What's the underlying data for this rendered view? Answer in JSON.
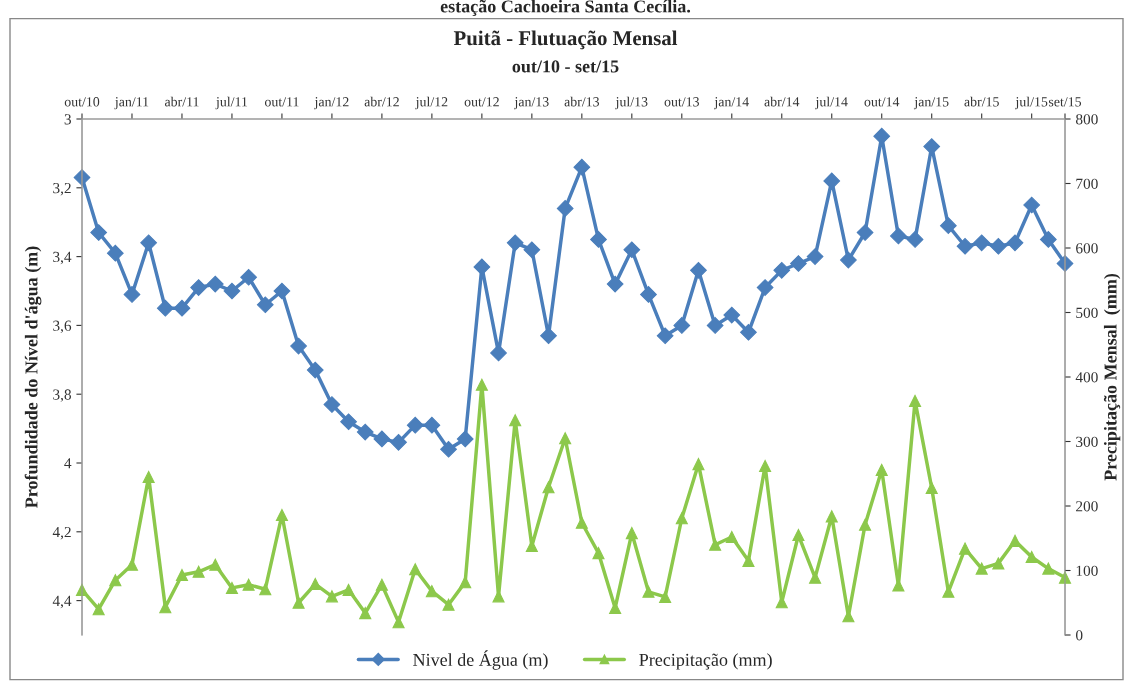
{
  "chart_data": {
    "type": "line",
    "title": "Puitã - Flutuação Mensal",
    "subtitle": "out/10 - set/15",
    "annotations": [
      "estação Cachoeira Santa Cecília."
    ],
    "ylabel": "Profundidade do Nível d'água (m)",
    "y2label": "Precipitação Mensal  (mm)",
    "categories": [
      "out/10",
      null,
      null,
      "jan/11",
      null,
      null,
      "abr/11",
      null,
      null,
      "jul/11",
      null,
      null,
      "out/11",
      null,
      null,
      "jan/12",
      null,
      null,
      "abr/12",
      null,
      null,
      "jul/12",
      null,
      null,
      "out/12",
      null,
      null,
      "jan/13",
      null,
      null,
      "abr/13",
      null,
      null,
      "jul/13",
      null,
      null,
      "out/13",
      null,
      null,
      "jan/14",
      null,
      null,
      "abr/14",
      null,
      null,
      "jul/14",
      null,
      null,
      "out/14",
      null,
      null,
      "jan/15",
      null,
      null,
      "abr/15",
      null,
      null,
      "jul/15",
      null,
      "set/15"
    ],
    "ylim": [
      4.5,
      3
    ],
    "yticks": [
      3,
      {
        "value": 3.2,
        "label": "3,2"
      },
      {
        "value": 3.4,
        "label": "3,4"
      },
      {
        "value": 3.6,
        "label": "3,6"
      },
      {
        "value": 3.8,
        "label": "3,8"
      },
      4,
      {
        "value": 4.2,
        "label": "4,2"
      },
      {
        "value": 4.4,
        "label": "4,4"
      }
    ],
    "y2lim": [
      0,
      800
    ],
    "y2ticks": [
      0,
      100,
      200,
      300,
      400,
      500,
      600,
      700,
      800
    ],
    "grid": false,
    "legend": "bottom",
    "line_style": "solid",
    "series": [
      {
        "name": "Nivel de Água (m)",
        "color": "#4a7ebb",
        "marker": "diamond",
        "axis": "y",
        "values": [
          3.17,
          3.33,
          3.39,
          3.51,
          3.36,
          3.55,
          3.55,
          3.49,
          3.48,
          3.5,
          3.46,
          3.54,
          3.5,
          3.66,
          3.73,
          3.83,
          3.88,
          3.91,
          3.93,
          3.94,
          3.89,
          3.89,
          3.96,
          3.93,
          3.43,
          3.68,
          3.36,
          3.38,
          3.63,
          3.26,
          3.14,
          3.35,
          3.48,
          3.38,
          3.51,
          3.63,
          3.6,
          3.44,
          3.6,
          3.57,
          3.62,
          3.49,
          3.44,
          3.42,
          3.4,
          3.18,
          3.41,
          3.33,
          3.05,
          3.34,
          3.35,
          3.08,
          3.31,
          3.37,
          3.36,
          3.37,
          3.36,
          3.25,
          3.35,
          3.42
        ]
      },
      {
        "name": "Precipitação (mm)",
        "color": "#8cc84b",
        "marker": "triangle",
        "axis": "y2",
        "values": [
          70,
          40,
          85,
          109,
          245,
          43,
          93,
          98,
          109,
          73,
          78,
          71,
          186,
          50,
          79,
          60,
          70,
          34,
          78,
          20,
          102,
          68,
          47,
          82,
          388,
          60,
          333,
          138,
          229,
          305,
          174,
          127,
          42,
          158,
          67,
          59,
          181,
          265,
          140,
          152,
          115,
          262,
          51,
          155,
          89,
          184,
          29,
          171,
          256,
          77,
          363,
          228,
          67,
          134,
          103,
          111,
          146,
          121,
          103,
          89
        ]
      }
    ]
  }
}
